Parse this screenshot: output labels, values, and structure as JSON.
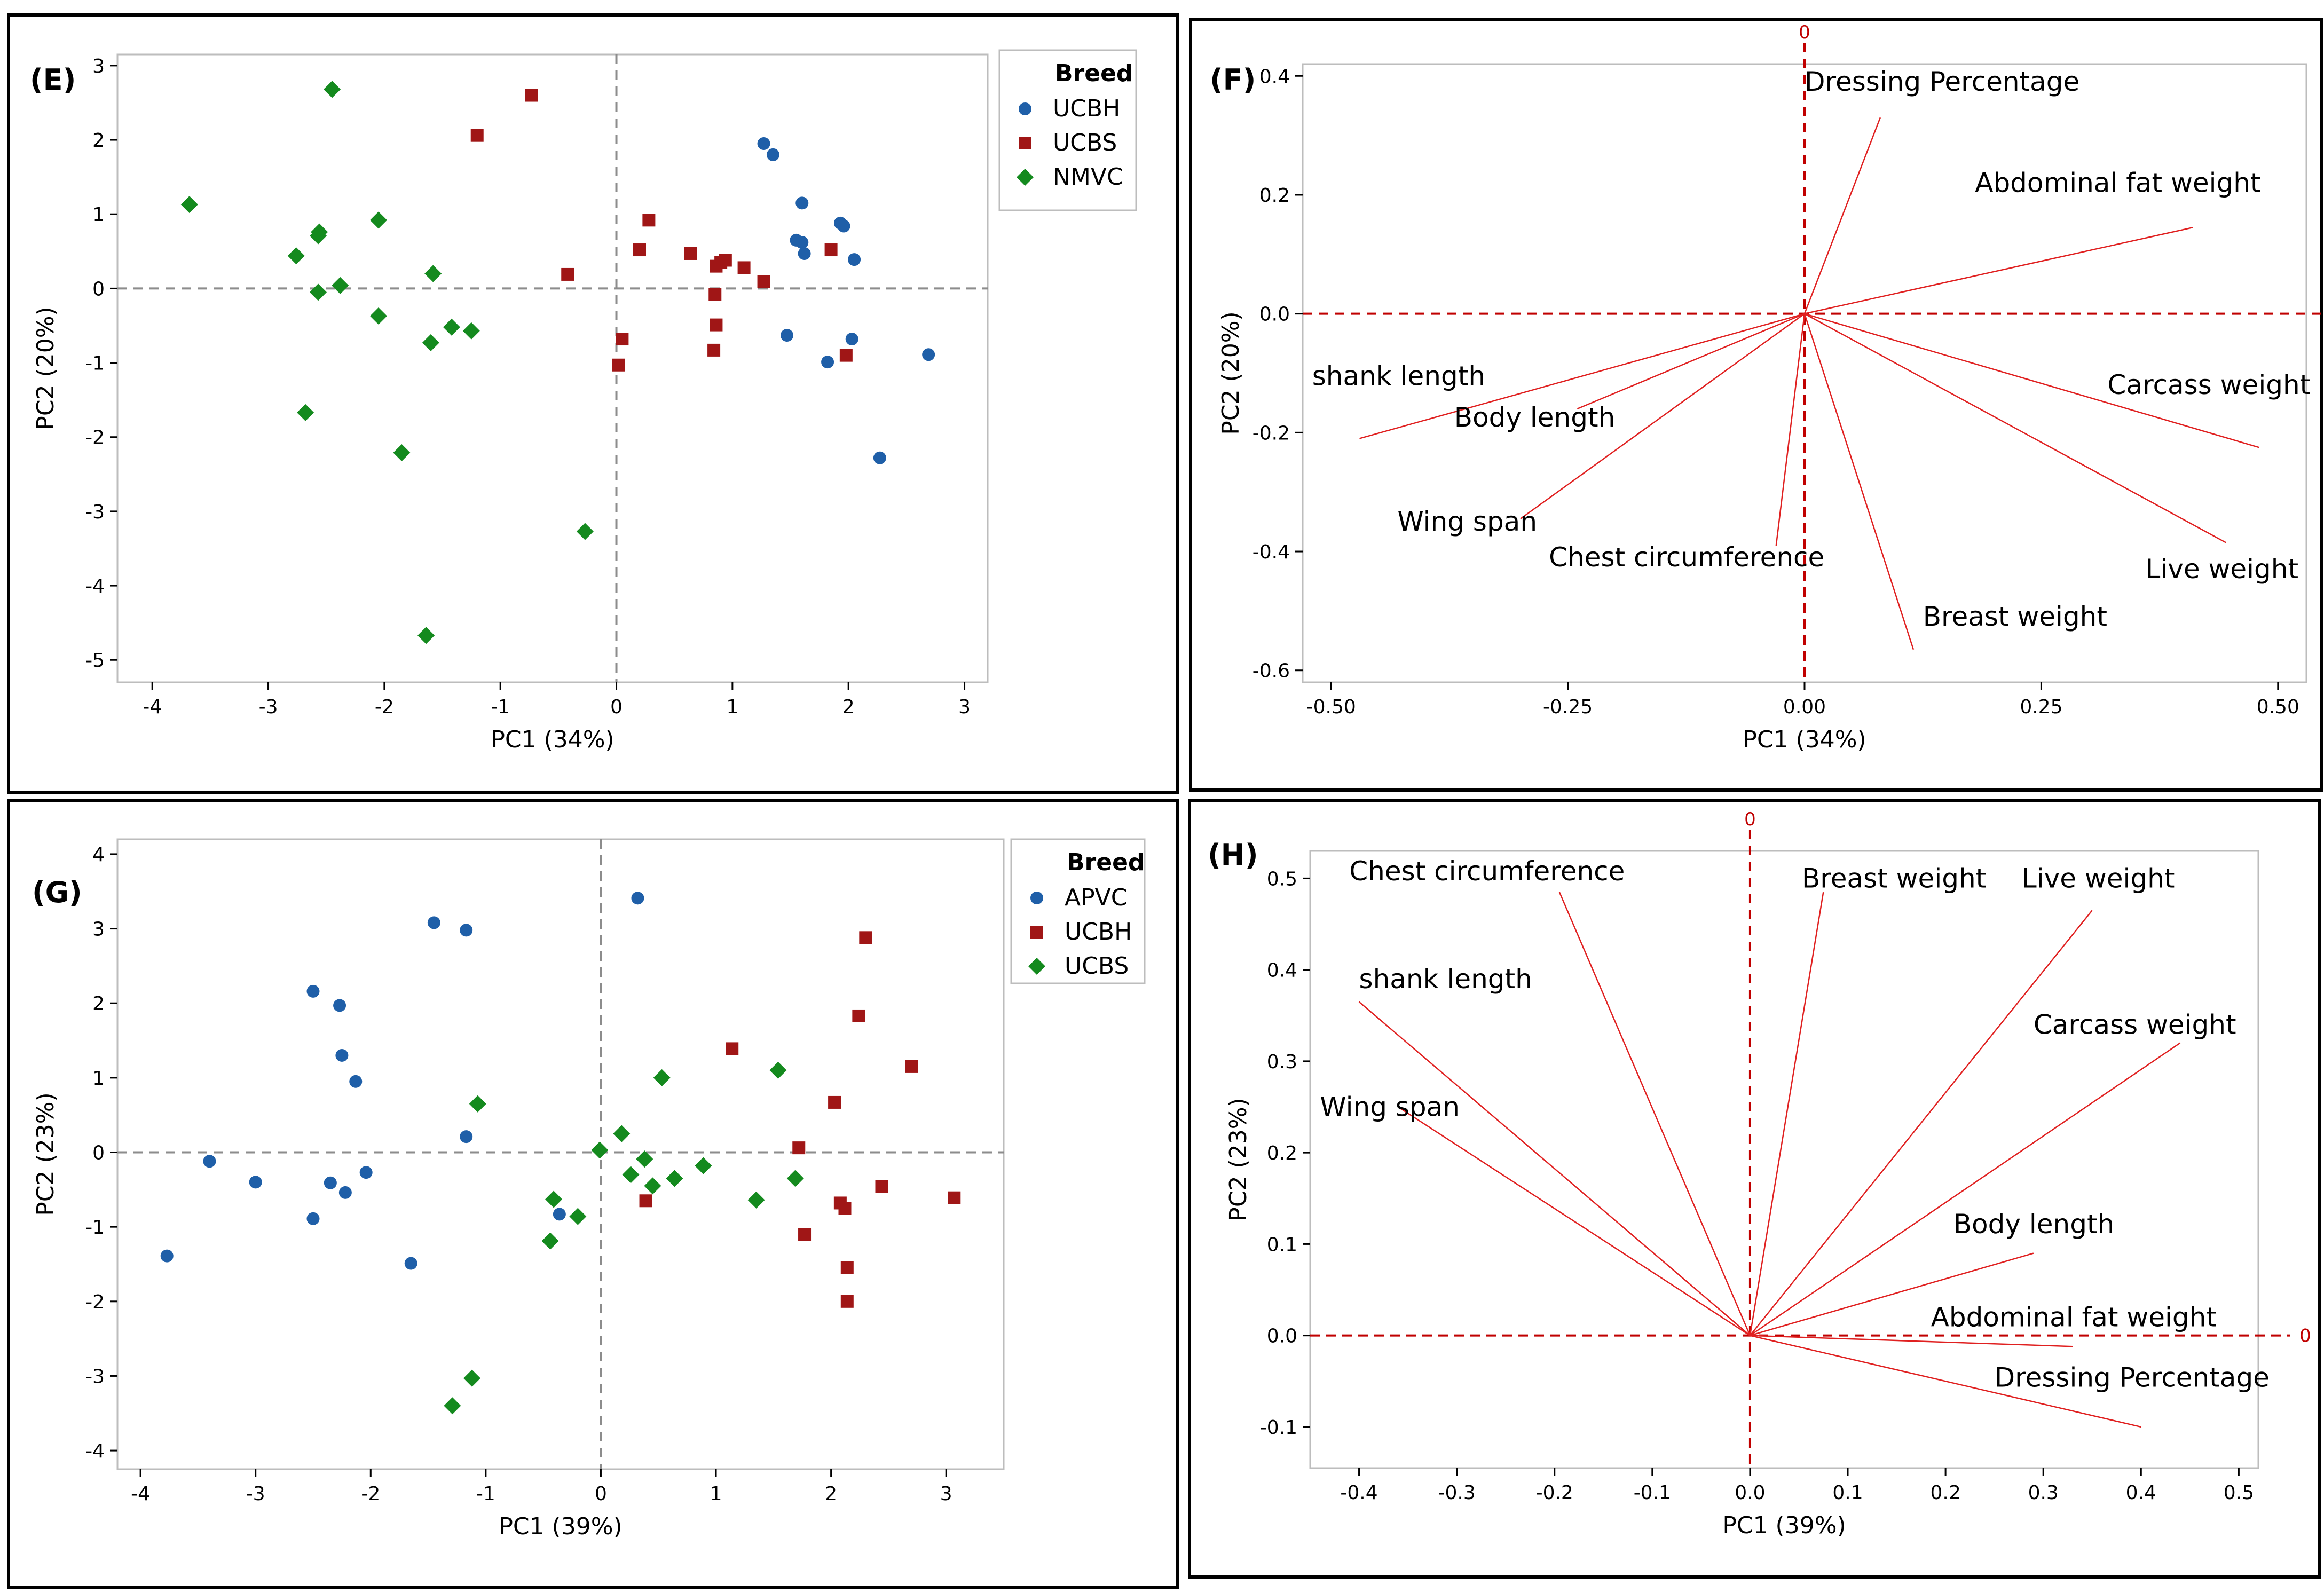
{
  "colors": {
    "UCBH_E": "#1f5fa8",
    "UCBS_E": "#a01616",
    "NMVC": "#148a1e",
    "APVC": "#1f5fa8",
    "UCBH_G": "#a01616",
    "UCBS_G": "#148a1e",
    "vector": "#e02020",
    "refline_red": "#c00000",
    "refline_gray": "#8c8c8c"
  },
  "chart_data": [
    {
      "panel": "(E)",
      "type": "scatter",
      "xlabel": "PC1  (34%)",
      "ylabel": "PC2  (20%)",
      "xlim": [
        -4.3,
        3.2
      ],
      "ylim": [
        -5.3,
        3.15
      ],
      "xticks": [
        -4,
        -3,
        -2,
        -1,
        0,
        1,
        2,
        3
      ],
      "yticks": [
        -5,
        -4,
        -3,
        -2,
        -1,
        0,
        1,
        2,
        3
      ],
      "legend": {
        "title": "Breed",
        "position": "right"
      },
      "series": [
        {
          "name": "UCBH",
          "marker": "circle",
          "color_key": "UCBH_E",
          "points": [
            [
              1.27,
              1.95
            ],
            [
              1.35,
              1.8
            ],
            [
              1.6,
              1.15
            ],
            [
              1.55,
              0.65
            ],
            [
              1.6,
              0.62
            ],
            [
              1.62,
              0.47
            ],
            [
              1.93,
              0.88
            ],
            [
              1.96,
              0.84
            ],
            [
              2.05,
              0.39
            ],
            [
              1.47,
              -0.63
            ],
            [
              2.03,
              -0.68
            ],
            [
              1.82,
              -0.99
            ],
            [
              2.69,
              -0.89
            ],
            [
              2.27,
              -2.28
            ]
          ]
        },
        {
          "name": "UCBS",
          "marker": "square",
          "color_key": "UCBS_E",
          "points": [
            [
              -0.73,
              2.6
            ],
            [
              -1.2,
              2.06
            ],
            [
              0.28,
              0.92
            ],
            [
              0.2,
              0.52
            ],
            [
              0.64,
              0.47
            ],
            [
              0.9,
              0.35
            ],
            [
              0.94,
              0.38
            ],
            [
              0.86,
              0.3
            ],
            [
              1.1,
              0.28
            ],
            [
              1.27,
              0.09
            ],
            [
              1.85,
              0.52
            ],
            [
              -0.42,
              0.19
            ],
            [
              0.85,
              -0.08
            ],
            [
              0.86,
              -0.49
            ],
            [
              1.98,
              -0.9
            ],
            [
              0.84,
              -0.83
            ],
            [
              0.05,
              -0.68
            ],
            [
              0.02,
              -1.03
            ]
          ]
        },
        {
          "name": "NMVC",
          "marker": "diamond",
          "color_key": "NMVC",
          "points": [
            [
              -2.45,
              2.68
            ],
            [
              -3.68,
              1.13
            ],
            [
              -2.05,
              0.92
            ],
            [
              -2.56,
              0.76
            ],
            [
              -2.57,
              0.71
            ],
            [
              -2.76,
              0.44
            ],
            [
              -2.38,
              0.04
            ],
            [
              -2.57,
              -0.05
            ],
            [
              -1.58,
              0.2
            ],
            [
              -2.05,
              -0.37
            ],
            [
              -1.42,
              -0.52
            ],
            [
              -1.25,
              -0.57
            ],
            [
              -1.6,
              -0.73
            ],
            [
              -2.68,
              -1.67
            ],
            [
              -1.85,
              -2.21
            ],
            [
              -0.27,
              -3.27
            ],
            [
              -1.64,
              -4.67
            ]
          ]
        }
      ]
    },
    {
      "panel": "(F)",
      "type": "loading",
      "xlabel": "PC1  (34%)",
      "ylabel": "PC2  (20%)",
      "xlim": [
        -0.53,
        0.53
      ],
      "ylim": [
        -0.62,
        0.42
      ],
      "xticks": [
        -0.5,
        -0.25,
        0.0,
        0.25,
        0.5
      ],
      "xtick_labels": [
        "-0.50",
        "-0.25",
        "0.00",
        "0.25",
        "0.50"
      ],
      "yticks": [
        -0.6,
        -0.4,
        -0.2,
        0.0,
        0.2,
        0.4
      ],
      "ytick_labels": [
        "-0.6",
        "-0.4",
        "-0.2",
        "0.0",
        "0.2",
        "0.4"
      ],
      "zero_label": "0",
      "vectors": [
        {
          "name": "Dressing Percentage",
          "x": 0.08,
          "y": 0.33
        },
        {
          "name": "Abdominal fat weight",
          "x": 0.41,
          "y": 0.145
        },
        {
          "name": "shank length",
          "x": -0.47,
          "y": -0.21
        },
        {
          "name": "Body length",
          "x": -0.24,
          "y": -0.16
        },
        {
          "name": "Carcass weight",
          "x": 0.48,
          "y": -0.225
        },
        {
          "name": "Wing span",
          "x": -0.3,
          "y": -0.345
        },
        {
          "name": "Chest circumference",
          "x": -0.03,
          "y": -0.39
        },
        {
          "name": "Live weight",
          "x": 0.445,
          "y": -0.385
        },
        {
          "name": "Breast weight",
          "x": 0.115,
          "y": -0.565
        }
      ],
      "labels": [
        {
          "name": "Dressing Percentage",
          "x": 0.0,
          "y": 0.375
        },
        {
          "name": "Abdominal fat weight",
          "x": 0.18,
          "y": 0.205
        },
        {
          "name": "shank length",
          "x": -0.52,
          "y": -0.12
        },
        {
          "name": "Body length",
          "x": -0.37,
          "y": -0.19
        },
        {
          "name": "Carcass weight",
          "x": 0.32,
          "y": -0.135
        },
        {
          "name": "Wing span",
          "x": -0.43,
          "y": -0.365
        },
        {
          "name": "Chest circumference",
          "x": -0.27,
          "y": -0.425
        },
        {
          "name": "Live weight",
          "x": 0.36,
          "y": -0.445
        },
        {
          "name": "Breast weight",
          "x": 0.125,
          "y": -0.525
        }
      ]
    },
    {
      "panel": "(G)",
      "type": "scatter",
      "xlabel": "PC1  (39%)",
      "ylabel": "PC2  (23%)",
      "xlim": [
        -4.2,
        3.5
      ],
      "ylim": [
        -4.25,
        4.2
      ],
      "xticks": [
        -4,
        -3,
        -2,
        -1,
        0,
        1,
        2,
        3
      ],
      "yticks": [
        -4,
        -3,
        -2,
        -1,
        0,
        1,
        2,
        3,
        4
      ],
      "legend": {
        "title": "Breed",
        "position": "right"
      },
      "series": [
        {
          "name": "APVC",
          "marker": "circle",
          "color_key": "APVC",
          "points": [
            [
              0.32,
              3.41
            ],
            [
              -1.45,
              3.08
            ],
            [
              -1.17,
              2.98
            ],
            [
              -2.5,
              2.16
            ],
            [
              -2.27,
              1.97
            ],
            [
              -2.25,
              1.3
            ],
            [
              -2.13,
              0.95
            ],
            [
              -1.17,
              0.21
            ],
            [
              -3.4,
              -0.12
            ],
            [
              -3.0,
              -0.4
            ],
            [
              -2.04,
              -0.27
            ],
            [
              -2.35,
              -0.41
            ],
            [
              -2.22,
              -0.54
            ],
            [
              -2.5,
              -0.89
            ],
            [
              -3.77,
              -1.39
            ],
            [
              -1.65,
              -1.49
            ],
            [
              -0.36,
              -0.83
            ]
          ]
        },
        {
          "name": "UCBH",
          "marker": "square",
          "color_key": "UCBH_G",
          "points": [
            [
              2.3,
              2.88
            ],
            [
              2.24,
              1.83
            ],
            [
              1.14,
              1.39
            ],
            [
              2.7,
              1.15
            ],
            [
              2.03,
              0.67
            ],
            [
              1.72,
              0.06
            ],
            [
              2.44,
              -0.46
            ],
            [
              3.07,
              -0.61
            ],
            [
              2.08,
              -0.68
            ],
            [
              2.12,
              -0.75
            ],
            [
              0.39,
              -0.65
            ],
            [
              1.77,
              -1.1
            ],
            [
              2.14,
              -1.55
            ],
            [
              2.14,
              -2.0
            ]
          ]
        },
        {
          "name": "UCBS",
          "marker": "diamond",
          "color_key": "UCBS_G",
          "points": [
            [
              1.54,
              1.1
            ],
            [
              0.53,
              1.0
            ],
            [
              -1.07,
              0.65
            ],
            [
              -0.01,
              0.03
            ],
            [
              0.18,
              0.25
            ],
            [
              0.38,
              -0.09
            ],
            [
              0.26,
              -0.3
            ],
            [
              0.89,
              -0.18
            ],
            [
              0.64,
              -0.35
            ],
            [
              0.45,
              -0.45
            ],
            [
              1.69,
              -0.35
            ],
            [
              1.35,
              -0.64
            ],
            [
              -0.41,
              -0.63
            ],
            [
              -0.2,
              -0.86
            ],
            [
              -0.44,
              -1.19
            ],
            [
              -1.12,
              -3.03
            ],
            [
              -1.29,
              -3.4
            ]
          ]
        }
      ]
    },
    {
      "panel": "(H)",
      "type": "loading",
      "xlabel": "PC1  (39%)",
      "ylabel": "PC2  (23%)",
      "xlim": [
        -0.45,
        0.52
      ],
      "ylim": [
        -0.145,
        0.53
      ],
      "xticks": [
        -0.4,
        -0.3,
        -0.2,
        -0.1,
        0.0,
        0.1,
        0.2,
        0.3,
        0.4,
        0.5
      ],
      "xtick_labels": [
        "-0.4",
        "-0.3",
        "-0.2",
        "-0.1",
        "0.0",
        "0.1",
        "0.2",
        "0.3",
        "0.4",
        "0.5"
      ],
      "yticks": [
        -0.1,
        0.0,
        0.1,
        0.2,
        0.3,
        0.4,
        0.5
      ],
      "ytick_labels": [
        "-0.1",
        "0.0",
        "0.1",
        "0.2",
        "0.3",
        "0.4",
        "0.5"
      ],
      "zero_label": "0",
      "vectors": [
        {
          "name": "Chest circumference",
          "x": -0.195,
          "y": 0.485
        },
        {
          "name": "Breast weight",
          "x": 0.075,
          "y": 0.485
        },
        {
          "name": "Live weight",
          "x": 0.35,
          "y": 0.465
        },
        {
          "name": "shank length",
          "x": -0.4,
          "y": 0.365
        },
        {
          "name": "Carcass weight",
          "x": 0.44,
          "y": 0.32
        },
        {
          "name": "Wing span",
          "x": -0.36,
          "y": 0.25
        },
        {
          "name": "Body length",
          "x": 0.29,
          "y": 0.09
        },
        {
          "name": "Abdominal fat weight",
          "x": 0.33,
          "y": -0.012
        },
        {
          "name": "Dressing Percentage",
          "x": 0.4,
          "y": -0.1
        }
      ],
      "labels": [
        {
          "name": "Chest circumference",
          "x": -0.41,
          "y": 0.498
        },
        {
          "name": "Breast weight",
          "x": 0.053,
          "y": 0.49
        },
        {
          "name": "Live weight",
          "x": 0.278,
          "y": 0.49
        },
        {
          "name": "shank length",
          "x": -0.4,
          "y": 0.38
        },
        {
          "name": "Carcass weight",
          "x": 0.29,
          "y": 0.33
        },
        {
          "name": "Wing span",
          "x": -0.44,
          "y": 0.24
        },
        {
          "name": "Body length",
          "x": 0.208,
          "y": 0.112
        },
        {
          "name": "Abdominal fat weight",
          "x": 0.185,
          "y": 0.01
        },
        {
          "name": "Dressing Percentage",
          "x": 0.25,
          "y": -0.056
        }
      ]
    }
  ]
}
